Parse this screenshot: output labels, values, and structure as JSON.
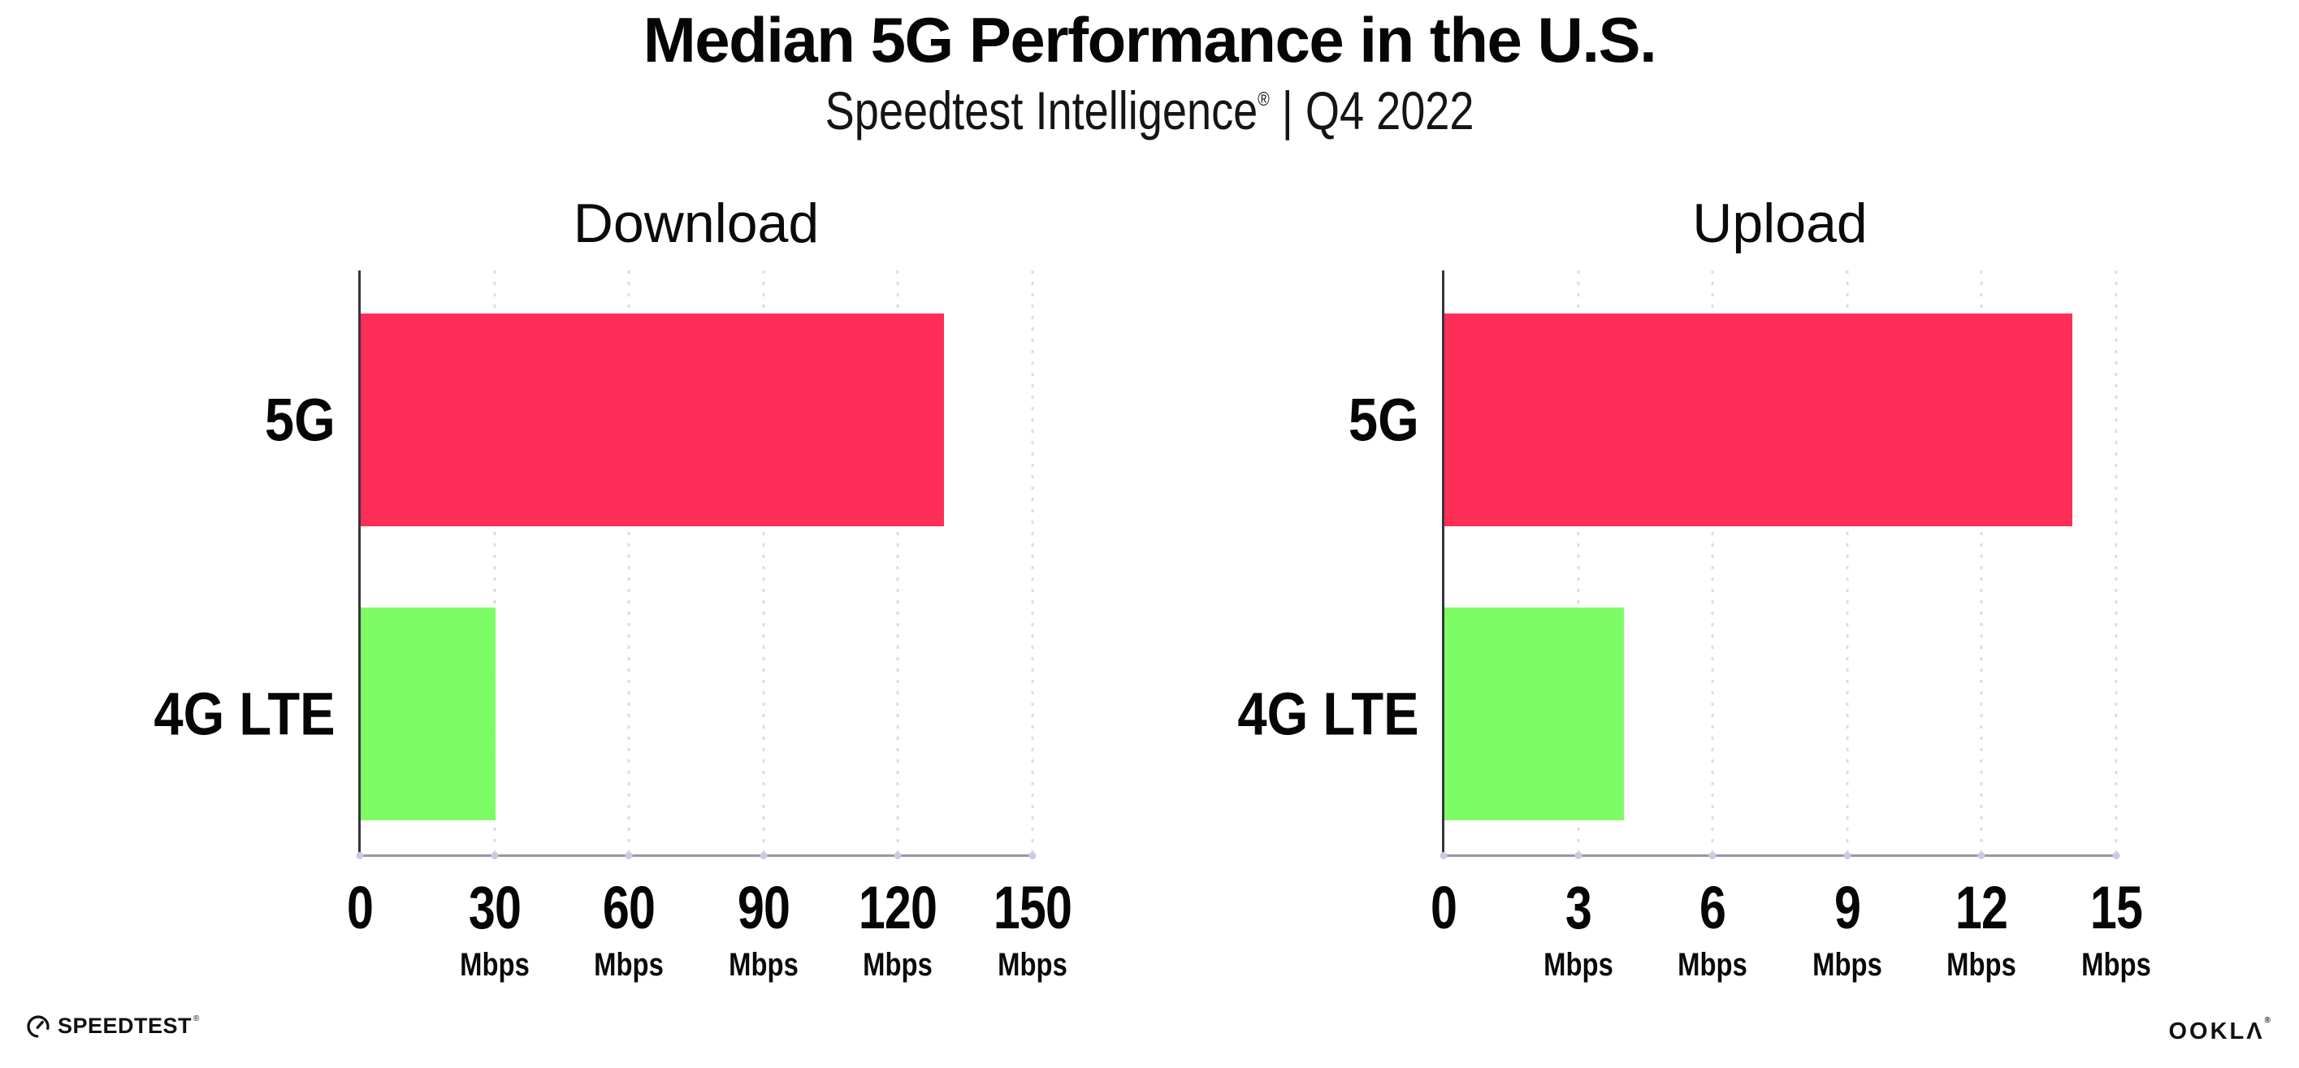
{
  "page": {
    "title": "Median 5G Performance in the U.S.",
    "subtitle_brand": "Speedtest Intelligence",
    "subtitle_reg": "®",
    "subtitle_rest": " | Q4 2022",
    "background_color": "#FFFFFF"
  },
  "chart_data": [
    {
      "type": "bar",
      "orientation": "horizontal",
      "title": "Download",
      "categories": [
        "5G",
        "4G LTE"
      ],
      "values": [
        130,
        30
      ],
      "unit": "Mbps",
      "xlim": [
        0,
        150
      ],
      "xticks": [
        0,
        30,
        60,
        90,
        120,
        150
      ],
      "xtick_labels": [
        "0",
        "30",
        "60",
        "90",
        "120",
        "150"
      ],
      "bar_colors": [
        "#FF2E58",
        "#7EFC66"
      ],
      "grid": "dotted-vertical",
      "legend": "none"
    },
    {
      "type": "bar",
      "orientation": "horizontal",
      "title": "Upload",
      "categories": [
        "5G",
        "4G LTE"
      ],
      "values": [
        14,
        4
      ],
      "unit": "Mbps",
      "xlim": [
        0,
        15
      ],
      "xticks": [
        0,
        3,
        6,
        9,
        12,
        15
      ],
      "xtick_labels": [
        "0",
        "3",
        "6",
        "9",
        "12",
        "15"
      ],
      "bar_colors": [
        "#FF2E58",
        "#7EFC66"
      ],
      "grid": "dotted-vertical",
      "legend": "none"
    }
  ],
  "footer": {
    "speedtest_label": "SPEEDTEST",
    "speedtest_reg": "®",
    "ookla_label": "OOKLΛ",
    "ookla_reg": "®"
  },
  "style_colors": {
    "bar_5g": "#FF2E58",
    "bar_4g_lte": "#7EFC66",
    "gridline": "#DCDCE8",
    "x_axis": "#97979E",
    "y_axis": "#38353F",
    "text": "#060606"
  }
}
